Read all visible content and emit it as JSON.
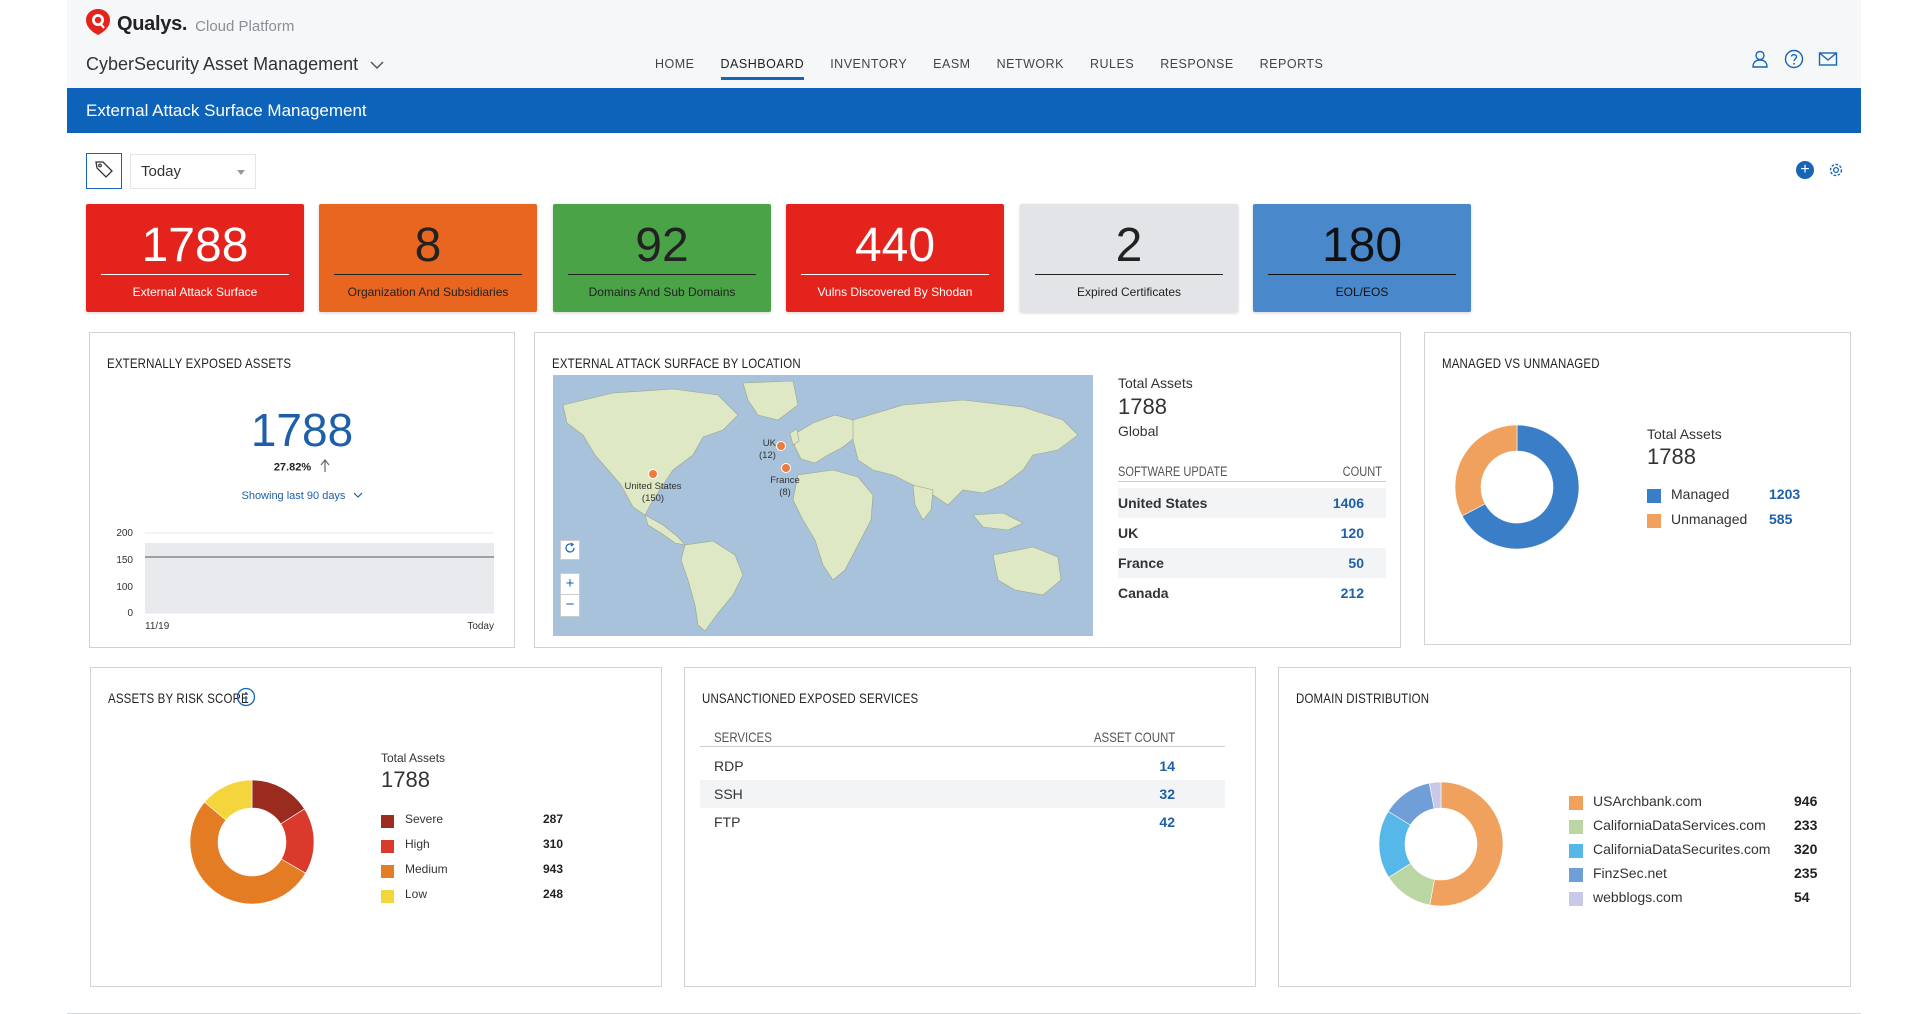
{
  "header": {
    "brand": "Qualys.",
    "product": "Cloud Platform",
    "module": "CyberSecurity Asset Management",
    "nav": [
      "HOME",
      "DASHBOARD",
      "INVENTORY",
      "EASM",
      "NETWORK",
      "RULES",
      "RESPONSE",
      "REPORTS"
    ],
    "active_nav": "DASHBOARD",
    "icons": [
      "user-icon",
      "help-icon",
      "mail-icon"
    ]
  },
  "banner": {
    "title": "External Attack Surface Management"
  },
  "toolbar": {
    "date_filter": "Today",
    "icons": [
      "tag-icon",
      "add-icon",
      "gear-icon"
    ]
  },
  "kpis": [
    {
      "value": "1788",
      "label": "External Attack Surface",
      "bg": "#e3231c",
      "fg": "#ffffff"
    },
    {
      "value": "8",
      "label": "Organization And Subsidiaries",
      "bg": "#e8661f",
      "fg": "#222222"
    },
    {
      "value": "92",
      "label": "Domains And Sub Domains",
      "bg": "#4aa346",
      "fg": "#222222"
    },
    {
      "value": "440",
      "label": "Vulns Discovered By Shodan",
      "bg": "#e3231c",
      "fg": "#ffffff"
    },
    {
      "value": "2",
      "label": "Expired Certificates",
      "bg": "#e2e4e7",
      "fg": "#222222"
    },
    {
      "value": "180",
      "label": "EOL/EOS",
      "bg": "#4a88cc",
      "fg": "#111111"
    }
  ],
  "exposed": {
    "title": "EXTERNALLY EXPOSED ASSETS",
    "value": "1788",
    "change": "27.82%",
    "period": "Showing last 90 days",
    "chart_data": {
      "type": "area",
      "x_labels": [
        "11/19",
        "Today"
      ],
      "y_ticks": [
        "200",
        "150",
        "100",
        "0"
      ],
      "series": [
        {
          "values": [
            140,
            140
          ]
        }
      ]
    }
  },
  "location": {
    "title": "EXTERNAL ATTACK SURFACE BY LOCATION",
    "total_label": "Total Assets",
    "total_value": "1788",
    "scope": "Global",
    "col1": "SOFTWARE UPDATE",
    "col2": "COUNT",
    "rows": [
      {
        "name": "United States",
        "count": "1406"
      },
      {
        "name": "UK",
        "count": "120"
      },
      {
        "name": "France",
        "count": "50"
      },
      {
        "name": "Canada",
        "count": "212"
      }
    ],
    "markers": [
      {
        "name": "UK",
        "count": "(12)"
      },
      {
        "name": "United States",
        "count": "(150)"
      },
      {
        "name": "France",
        "count": "(8)"
      }
    ],
    "map_controls": [
      "refresh-icon",
      "+",
      "−"
    ]
  },
  "managed": {
    "title": "MANAGED VS UNMANAGED",
    "total_label": "Total Assets",
    "total_value": "1788",
    "chart_data": {
      "type": "pie",
      "categories": [
        "Managed",
        "Unmanaged"
      ],
      "values": [
        1203,
        585
      ],
      "labels": [
        "1203",
        "585"
      ],
      "colors": [
        "#3a7ec7",
        "#f0a15e"
      ]
    }
  },
  "risk": {
    "title": "ASSETS BY RISK SCORE",
    "total_label": "Total Assets",
    "total_value": "1788",
    "chart_data": {
      "type": "pie",
      "categories": [
        "Severe",
        "High",
        "Medium",
        "Low"
      ],
      "values": [
        287,
        310,
        943,
        248
      ],
      "labels": [
        "287",
        "310",
        "943",
        "248"
      ],
      "colors": [
        "#9b2a1f",
        "#d93a2b",
        "#e37c22",
        "#f4d63c"
      ]
    }
  },
  "services": {
    "title": "UNSANCTIONED EXPOSED SERVICES",
    "col1": "SERVICES",
    "col2": "ASSET COUNT",
    "rows": [
      {
        "name": "RDP",
        "count": "14"
      },
      {
        "name": "SSH",
        "count": "32"
      },
      {
        "name": "FTP",
        "count": "42"
      }
    ]
  },
  "domains": {
    "title": "DOMAIN DISTRIBUTION",
    "chart_data": {
      "type": "pie",
      "categories": [
        "USArchbank.com",
        "CaliforniaDataServices.com",
        "CaliforniaDataSecurites.com",
        "FinzSec.net",
        "webblogs.com"
      ],
      "values": [
        946,
        233,
        320,
        235,
        54
      ],
      "labels": [
        "946",
        "233",
        "320",
        "235",
        "54"
      ],
      "colors": [
        "#f0a15e",
        "#b9d6a3",
        "#56b8e8",
        "#6f9fd6",
        "#c9c8e6"
      ]
    }
  }
}
